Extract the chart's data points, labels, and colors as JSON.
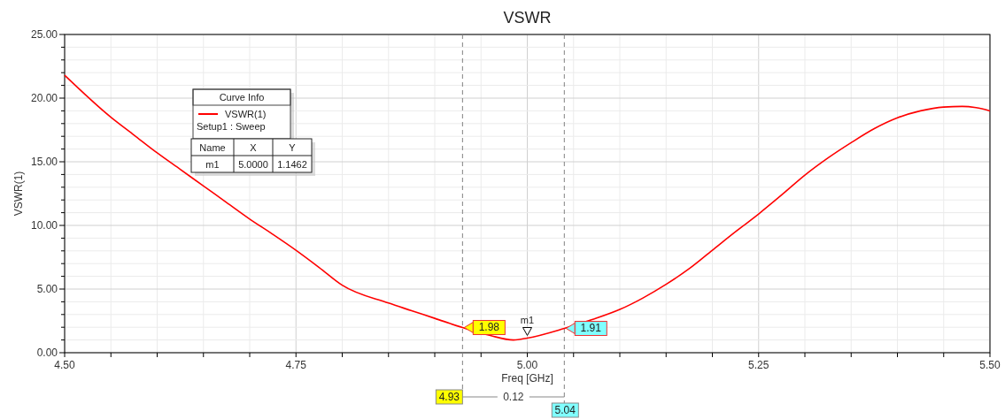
{
  "chart_data": {
    "type": "line",
    "title": "VSWR",
    "xlabel": "Freq [GHz]",
    "ylabel": "VSWR(1)",
    "legend_title": "Curve Info",
    "legend": "top left",
    "grid": true,
    "line_style": "solid",
    "marker": "none",
    "xlim": [
      4.5,
      5.5
    ],
    "xticks": [
      {
        "value": 4.5,
        "label": "4.50"
      },
      {
        "value": 4.55,
        "label": null
      },
      {
        "value": 4.6,
        "label": null
      },
      {
        "value": 4.65,
        "label": null
      },
      {
        "value": 4.7,
        "label": null
      },
      {
        "value": 4.75,
        "label": "4.75"
      },
      {
        "value": 4.8,
        "label": null
      },
      {
        "value": 4.85,
        "label": null
      },
      {
        "value": 4.9,
        "label": null
      },
      {
        "value": 4.95,
        "label": null
      },
      {
        "value": 5.0,
        "label": "5.00"
      },
      {
        "value": 5.05,
        "label": null
      },
      {
        "value": 5.1,
        "label": null
      },
      {
        "value": 5.15,
        "label": null
      },
      {
        "value": 5.2,
        "label": null
      },
      {
        "value": 5.25,
        "label": "5.25"
      },
      {
        "value": 5.3,
        "label": null
      },
      {
        "value": 5.35,
        "label": null
      },
      {
        "value": 5.4,
        "label": null
      },
      {
        "value": 5.45,
        "label": null
      },
      {
        "value": 5.5,
        "label": "5.50"
      }
    ],
    "ylim": [
      0,
      25
    ],
    "yticks": [
      {
        "value": 0,
        "label": "0.00"
      },
      {
        "value": 1,
        "label": null
      },
      {
        "value": 2,
        "label": null
      },
      {
        "value": 3,
        "label": null
      },
      {
        "value": 4,
        "label": null
      },
      {
        "value": 5,
        "label": "5.00"
      },
      {
        "value": 6,
        "label": null
      },
      {
        "value": 7,
        "label": null
      },
      {
        "value": 8,
        "label": null
      },
      {
        "value": 9,
        "label": null
      },
      {
        "value": 10,
        "label": "10.00"
      },
      {
        "value": 11,
        "label": null
      },
      {
        "value": 12,
        "label": null
      },
      {
        "value": 13,
        "label": null
      },
      {
        "value": 14,
        "label": null
      },
      {
        "value": 15,
        "label": "15.00"
      },
      {
        "value": 16,
        "label": null
      },
      {
        "value": 17,
        "label": null
      },
      {
        "value": 18,
        "label": null
      },
      {
        "value": 19,
        "label": null
      },
      {
        "value": 20,
        "label": "20.00"
      },
      {
        "value": 21,
        "label": null
      },
      {
        "value": 22,
        "label": null
      },
      {
        "value": 23,
        "label": null
      },
      {
        "value": 24,
        "label": null
      },
      {
        "value": 25,
        "label": "25.00"
      }
    ],
    "series": [
      {
        "name": "VSWR(1)",
        "color": "#ff0000",
        "x": [
          4.5,
          4.55,
          4.575,
          4.6,
          4.625,
          4.65,
          4.675,
          4.7,
          4.725,
          4.75,
          4.775,
          4.8,
          4.85,
          4.875,
          4.9,
          4.93,
          4.96,
          4.985,
          5.0,
          5.04,
          5.07,
          5.1,
          5.125,
          5.15,
          5.175,
          5.2,
          5.225,
          5.25,
          5.275,
          5.3,
          5.325,
          5.35,
          5.375,
          5.4,
          5.425,
          5.45,
          5.47,
          5.485,
          5.5
        ],
        "values": [
          21.8,
          18.5,
          17.1,
          15.7,
          14.4,
          13.1,
          11.8,
          10.5,
          9.3,
          8.05,
          6.7,
          5.3,
          3.9,
          3.3,
          2.7,
          1.98,
          1.35,
          1.0,
          1.15,
          1.91,
          2.6,
          3.4,
          4.3,
          5.37,
          6.6,
          8.05,
          9.5,
          10.9,
          12.4,
          13.95,
          15.3,
          16.5,
          17.6,
          18.45,
          19.0,
          19.3,
          19.35,
          19.25,
          19.0
        ]
      }
    ],
    "ref_lines": [
      {
        "axis": "x",
        "value": 4.93,
        "label": "4.93",
        "color": "#808080",
        "line_style": "dashed"
      },
      {
        "axis": "x",
        "value": 5.04,
        "label": "5.04",
        "color": "#808080",
        "line_style": "dashed"
      }
    ],
    "annotations": [
      "Setup1 : Sweep",
      "Name",
      "X",
      "Y",
      "m1",
      "5.0000",
      "1.1462",
      "0.12",
      {
        "text": "1.98",
        "x": 4.93,
        "y": 1.98
      },
      {
        "text": "1.91",
        "x": 5.04,
        "y": 1.91
      },
      {
        "text": "m1",
        "x": 5.0,
        "y": 1.1462
      }
    ]
  }
}
